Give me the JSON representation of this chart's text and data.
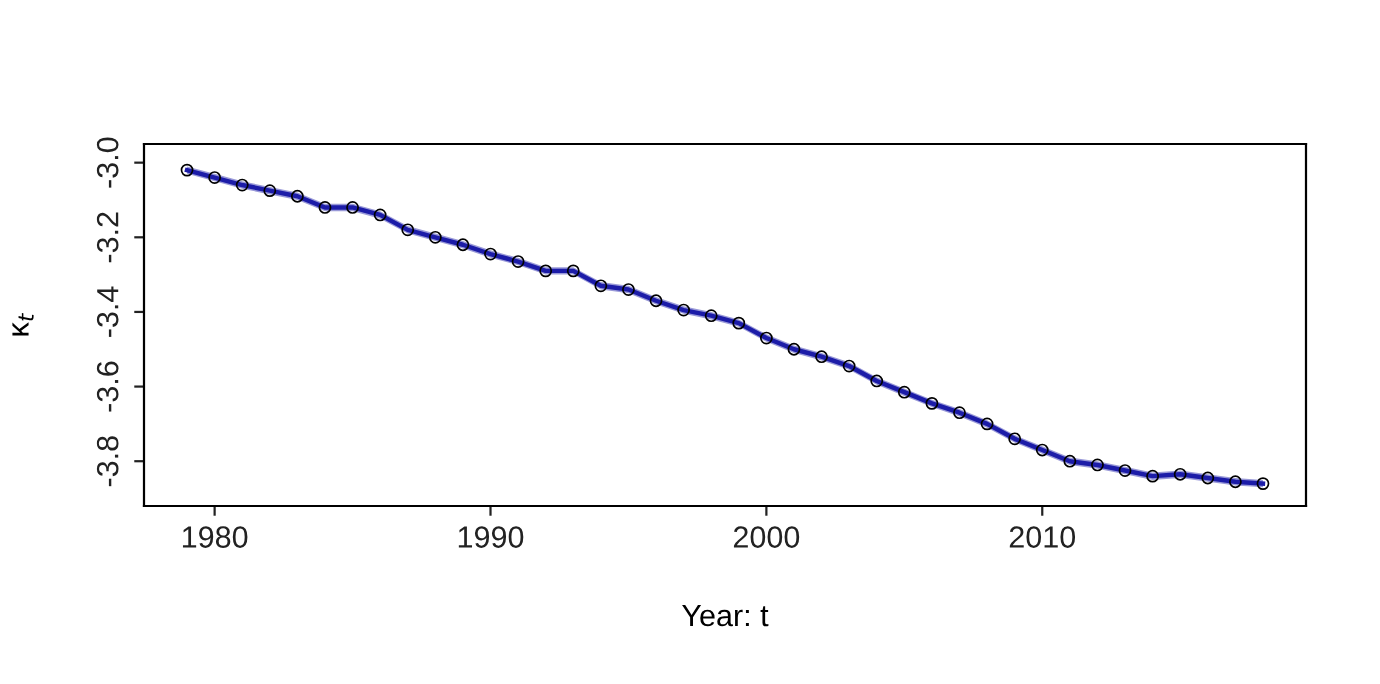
{
  "chart_data": {
    "type": "line",
    "xlabel": "Year: t",
    "ylabel": "κ$_{t}$",
    "x": [
      1979,
      1980,
      1981,
      1982,
      1983,
      1984,
      1985,
      1986,
      1987,
      1988,
      1989,
      1990,
      1991,
      1992,
      1993,
      1994,
      1995,
      1996,
      1997,
      1998,
      1999,
      2000,
      2001,
      2002,
      2003,
      2004,
      2005,
      2006,
      2007,
      2008,
      2009,
      2010,
      2011,
      2012,
      2013,
      2014,
      2015,
      2016,
      2017,
      2018
    ],
    "series": [
      {
        "color": "#1c1ca8",
        "values": [
          -3.02,
          -3.04,
          -3.06,
          -3.075,
          -3.09,
          -3.12,
          -3.12,
          -3.14,
          -3.18,
          -3.2,
          -3.22,
          -3.245,
          -3.265,
          -3.29,
          -3.29,
          -3.33,
          -3.34,
          -3.37,
          -3.395,
          -3.41,
          -3.43,
          -3.47,
          -3.5,
          -3.52,
          -3.545,
          -3.585,
          -3.615,
          -3.645,
          -3.67,
          -3.7,
          -3.74,
          -3.77,
          -3.8,
          -3.81,
          -3.825,
          -3.84,
          -3.835,
          -3.845,
          -3.855,
          -3.86
        ],
        "lower": [
          -3.03,
          -3.05,
          -3.07,
          -3.085,
          -3.1,
          -3.13,
          -3.13,
          -3.15,
          -3.19,
          -3.21,
          -3.23,
          -3.255,
          -3.275,
          -3.3,
          -3.3,
          -3.34,
          -3.35,
          -3.38,
          -3.405,
          -3.42,
          -3.44,
          -3.48,
          -3.51,
          -3.53,
          -3.555,
          -3.595,
          -3.625,
          -3.655,
          -3.68,
          -3.71,
          -3.75,
          -3.78,
          -3.81,
          -3.82,
          -3.835,
          -3.85,
          -3.845,
          -3.855,
          -3.865,
          -3.87
        ],
        "upper": [
          -3.01,
          -3.03,
          -3.05,
          -3.065,
          -3.08,
          -3.11,
          -3.11,
          -3.13,
          -3.17,
          -3.19,
          -3.21,
          -3.235,
          -3.255,
          -3.28,
          -3.28,
          -3.32,
          -3.33,
          -3.36,
          -3.385,
          -3.4,
          -3.42,
          -3.46,
          -3.49,
          -3.51,
          -3.535,
          -3.575,
          -3.605,
          -3.635,
          -3.66,
          -3.69,
          -3.73,
          -3.76,
          -3.79,
          -3.8,
          -3.815,
          -3.83,
          -3.825,
          -3.835,
          -3.845,
          -3.85
        ]
      }
    ],
    "xlim": [
      1977.44,
      2019.56
    ],
    "ylim": [
      -3.92,
      -2.95
    ],
    "xticks": [
      1980,
      1990,
      2000,
      2010
    ],
    "yticks": [
      {
        "value": -3.0,
        "label": "-3.0"
      },
      {
        "value": -3.2,
        "label": "-3.2"
      },
      {
        "value": -3.4,
        "label": "-3.4"
      },
      {
        "value": -3.6,
        "label": "-3.6"
      },
      {
        "value": -3.8,
        "label": "-3.8"
      }
    ],
    "marker": "circle",
    "line_style": "solid",
    "grid": false,
    "legend": false
  }
}
